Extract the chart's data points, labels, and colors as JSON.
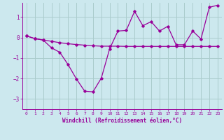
{
  "xlabel": "Windchill (Refroidissement éolien,°C)",
  "background_color": "#cce8ee",
  "grid_color": "#aacccc",
  "line_color": "#990099",
  "xlim": [
    -0.5,
    23.5
  ],
  "ylim": [
    -3.5,
    1.7
  ],
  "yticks": [
    -3,
    -2,
    -1,
    0,
    1
  ],
  "xticks": [
    0,
    1,
    2,
    3,
    4,
    5,
    6,
    7,
    8,
    9,
    10,
    11,
    12,
    13,
    14,
    15,
    16,
    17,
    18,
    19,
    20,
    21,
    22,
    23
  ],
  "line1_x": [
    0,
    1,
    2,
    3,
    4,
    5,
    6,
    7,
    8,
    9,
    10,
    11,
    12,
    13,
    14,
    15,
    16,
    17,
    18,
    19,
    20,
    21,
    22,
    23
  ],
  "line1_y": [
    0.08,
    -0.05,
    -0.12,
    -0.18,
    -0.25,
    -0.3,
    -0.34,
    -0.37,
    -0.4,
    -0.42,
    -0.42,
    -0.42,
    -0.43,
    -0.43,
    -0.43,
    -0.43,
    -0.43,
    -0.43,
    -0.43,
    -0.43,
    -0.43,
    -0.43,
    -0.43,
    -0.43
  ],
  "line2_x": [
    0,
    1,
    2,
    3,
    4,
    5,
    6,
    7,
    8,
    9,
    10,
    11,
    12,
    13,
    14,
    15,
    16,
    17,
    18,
    19,
    20,
    21,
    22,
    23
  ],
  "line2_y": [
    0.08,
    -0.05,
    -0.12,
    -0.5,
    -0.72,
    -1.32,
    -2.02,
    -2.62,
    -2.65,
    -1.98,
    -0.55,
    0.32,
    0.35,
    1.28,
    0.58,
    0.78,
    0.32,
    0.55,
    -0.35,
    -0.35,
    0.32,
    -0.07,
    1.48,
    1.58
  ]
}
